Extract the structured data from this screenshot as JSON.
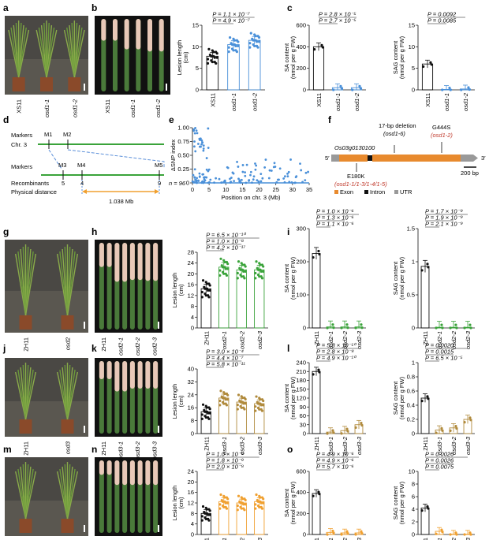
{
  "panel_letters": [
    "a",
    "b",
    "c",
    "d",
    "e",
    "f",
    "g",
    "h",
    "i",
    "j",
    "k",
    "l",
    "m",
    "n",
    "o"
  ],
  "photo_labels": {
    "a": [
      "XS11",
      "osd1-1",
      "osd1-2"
    ],
    "b": [
      "XS11",
      "osd1-1",
      "osd1-2"
    ],
    "g": [
      "ZH11",
      "osd2"
    ],
    "h": [
      "ZH11",
      "osd2-1",
      "osd2-2",
      "osd2-3"
    ],
    "j": [
      "ZH11",
      "osd3"
    ],
    "k": [
      "ZH11",
      "osd3-1",
      "osd3-2",
      "osd3-3"
    ],
    "m": [
      "ZH11",
      "osd4"
    ],
    "n": [
      "ZH11",
      "osd4-1",
      "osd4-2",
      "osd4-3"
    ]
  },
  "colors": {
    "black": "#111111",
    "blue": "#4a90d9",
    "green": "#3aa33a",
    "brown": "#b08a3c",
    "orange": "#f0a030",
    "gray": "#999999",
    "exon": "#e88a2e",
    "red": "#c0392b"
  },
  "mapping_d": {
    "chr_label": "Chr. 3",
    "markers_label": "Markers",
    "top_markers": [
      "M1",
      "M2"
    ],
    "bottom_markers": [
      "M3",
      "M4",
      "M5"
    ],
    "recombinants_label": "Recombinants",
    "recombinants": [
      "5",
      "4",
      "9"
    ],
    "n_label": "n = 96",
    "physical_label": "Physical distance",
    "distance": "1.038 Mb"
  },
  "gene_f": {
    "gene_name": "Os03g0130100",
    "five_prime": "5′",
    "three_prime": "3′",
    "deletion_line1": "17-bp deletion",
    "deletion_line2": "(osd1-6)",
    "g444s_line1": "G444S",
    "g444s_line2": "(osd1-2)",
    "e180k_line1": "E180K",
    "e180k_line2": "(osd1-1/1-3/1-4/1-5)",
    "scale_label": "200 bp",
    "legend": [
      "Exon",
      "Intron",
      "UTR"
    ]
  },
  "chart_data": [
    {
      "panel": "b",
      "type": "scatter",
      "ylabel": "Lesion length (cm)",
      "ylim": [
        0,
        15
      ],
      "yticks": [
        0,
        5,
        10,
        15
      ],
      "categories": [
        "XS11",
        "osd1-1",
        "osd1-2"
      ],
      "values": [
        7.8,
        10.5,
        11.5
      ],
      "color": [
        "black",
        "blue",
        "blue"
      ],
      "pvalues": [
        "P = 1.1 × 10⁻⁷",
        "P = 4.9 × 10⁻⁷"
      ]
    },
    {
      "panel": "c-SA",
      "type": "bar",
      "ylabel": "SA content (nmol per g FW)",
      "ylim": [
        0,
        600
      ],
      "yticks": [
        0,
        200,
        400,
        600
      ],
      "categories": [
        "XS11",
        "osd1-1",
        "osd1-2"
      ],
      "values": [
        400,
        20,
        20
      ],
      "color": [
        "black",
        "blue",
        "blue"
      ],
      "pvalues": [
        "P = 2.8 × 10⁻⁵",
        "P = 2.7 × 10⁻⁵"
      ]
    },
    {
      "panel": "c-SAG",
      "type": "bar",
      "ylabel": "SAG content (nmol per g FW)",
      "ylim": [
        0,
        15
      ],
      "yticks": [
        0,
        5,
        10,
        15
      ],
      "categories": [
        "XS11",
        "osd1-1",
        "osd1-2"
      ],
      "values": [
        6.0,
        0.1,
        0.2
      ],
      "color": [
        "black",
        "blue",
        "blue"
      ],
      "pvalues": [
        "P = 0.0092",
        "P = 0.0085"
      ]
    },
    {
      "panel": "e",
      "type": "scatter",
      "xlabel": "Position on chr. 3 (Mb)",
      "ylabel": "ΔSNP index",
      "xlim": [
        0,
        35
      ],
      "ylim": [
        0,
        1.0
      ],
      "xticks": [
        0,
        5,
        10,
        15,
        20,
        25,
        30,
        35
      ],
      "yticks": [
        0,
        0.25,
        0.5,
        0.75,
        1.0
      ],
      "ytick_labels": [
        "0",
        "0.25",
        "0.50",
        "0.75",
        "1.00"
      ]
    },
    {
      "panel": "h",
      "type": "scatter",
      "ylabel": "Lesion length (cm)",
      "ylim": [
        0,
        28
      ],
      "yticks": [
        0,
        4,
        8,
        12,
        16,
        20,
        24,
        28
      ],
      "categories": [
        "ZH11",
        "osd2-1",
        "osd2-2",
        "osd2-3"
      ],
      "values": [
        14.5,
        22.5,
        21.5,
        21.5
      ],
      "color": [
        "black",
        "green",
        "green",
        "green"
      ],
      "pvalues": [
        "P = 6.5 × 10⁻¹⁰",
        "P = 1.0 × 10⁻⁸",
        "P = 4.2 × 10⁻¹⁷"
      ]
    },
    {
      "panel": "i-SA",
      "type": "bar",
      "ylabel": "SA content (nmol per g FW)",
      "ylim": [
        0,
        300
      ],
      "yticks": [
        0,
        100,
        200,
        300
      ],
      "categories": [
        "ZH11",
        "osd2-1",
        "osd2-2",
        "osd2-3"
      ],
      "values": [
        225,
        3,
        3,
        3
      ],
      "color": [
        "black",
        "green",
        "green",
        "green"
      ],
      "pvalues": [
        "P = 1.0 × 10⁻⁶",
        "P = 1.3 × 10⁻⁶",
        "P = 1.1 × 10⁻⁶"
      ]
    },
    {
      "panel": "i-SAG",
      "type": "bar",
      "ylabel": "SAG content (nmol per g FW)",
      "ylim": [
        0,
        1.5
      ],
      "yticks": [
        0,
        0.5,
        1.0,
        1.5
      ],
      "categories": [
        "ZH11",
        "osd2-1",
        "osd2-2",
        "osd2-3"
      ],
      "values": [
        0.93,
        0.01,
        0.01,
        0.01
      ],
      "color": [
        "black",
        "green",
        "green",
        "green"
      ],
      "pvalues": [
        "P = 1.7 × 10⁻⁹",
        "P = 1.9 × 10⁻⁹",
        "P = 2.1 × 10⁻⁹"
      ]
    },
    {
      "panel": "k",
      "type": "scatter",
      "ylabel": "Lesion length (cm)",
      "ylim": [
        0,
        40
      ],
      "yticks": [
        0,
        8,
        16,
        24,
        32,
        40
      ],
      "categories": [
        "ZH11",
        "osd3-1",
        "osd3-2",
        "osd3-3"
      ],
      "values": [
        13.5,
        22,
        19.5,
        18.5
      ],
      "color": [
        "black",
        "brown",
        "brown",
        "brown"
      ],
      "pvalues": [
        "P = 3.0 × 10⁻⁴",
        "P = 4.4 × 10⁻⁷",
        "P = 5.8 × 10⁻¹¹"
      ]
    },
    {
      "panel": "l-SA",
      "type": "bar",
      "ylabel": "SA content (nmol per g FW)",
      "ylim": [
        0,
        240
      ],
      "yticks": [
        0,
        30,
        60,
        90,
        120,
        150,
        180,
        210,
        240
      ],
      "categories": [
        "ZH11",
        "osd3-1",
        "osd3-2",
        "osd3-3"
      ],
      "values": [
        210,
        5,
        10,
        30
      ],
      "color": [
        "black",
        "brown",
        "brown",
        "brown"
      ],
      "pvalues": [
        "P = 5.8 × 10⁻¹⁰",
        "P = 2.8 × 10⁻⁸",
        "P = 4.9 × 10⁻¹⁰"
      ]
    },
    {
      "panel": "l-SAG",
      "type": "bar",
      "ylabel": "SAG content (nmol per g FW)",
      "ylim": [
        0,
        1.0
      ],
      "yticks": [
        0,
        0.2,
        0.4,
        0.6,
        0.8,
        1.0
      ],
      "categories": [
        "ZH11",
        "osd3-1",
        "osd3-2",
        "osd3-3"
      ],
      "values": [
        0.5,
        0.05,
        0.08,
        0.2
      ],
      "color": [
        "black",
        "brown",
        "brown",
        "brown"
      ],
      "pvalues": [
        "P = 0.0020",
        "P = 0.0015",
        "P = 6.5 × 10⁻⁵"
      ]
    },
    {
      "panel": "n",
      "type": "scatter",
      "ylabel": "Lesion length (cm)",
      "ylim": [
        0,
        24
      ],
      "yticks": [
        0,
        4,
        8,
        12,
        16,
        20,
        24
      ],
      "categories": [
        "ZH11",
        "osd4-1",
        "osd4-2",
        "osd4-3"
      ],
      "values": [
        8.0,
        12.5,
        12.0,
        12.5
      ],
      "color": [
        "black",
        "orange",
        "orange",
        "orange"
      ],
      "pvalues": [
        "P = 1.0 × 10⁻⁹",
        "P = 1.8 × 10⁻⁹",
        "P = 2.0 × 10⁻⁸"
      ]
    },
    {
      "panel": "o-SA",
      "type": "bar",
      "ylabel": "SA content (nmol per g FW)",
      "ylim": [
        0,
        600
      ],
      "yticks": [
        0,
        200,
        400,
        600
      ],
      "categories": [
        "ZH11",
        "osd4-1",
        "osd4-2",
        "osd4-3"
      ],
      "values": [
        390,
        20,
        15,
        15
      ],
      "color": [
        "black",
        "orange",
        "orange",
        "orange"
      ],
      "pvalues": [
        "P = 4.9 × 10⁻⁶",
        "P = 4.9 × 10⁻⁶",
        "P = 5.7 × 10⁻⁶"
      ]
    },
    {
      "panel": "o-SAG",
      "type": "bar",
      "ylabel": "SAG content (nmol per g FW)",
      "ylim": [
        0,
        10
      ],
      "yticks": [
        0,
        2,
        4,
        6,
        8,
        10
      ],
      "categories": [
        "ZH11",
        "osd4-1",
        "osd4-2",
        "osd4-3"
      ],
      "values": [
        4.2,
        0.5,
        0.05,
        0.05
      ],
      "color": [
        "black",
        "orange",
        "orange",
        "orange"
      ],
      "pvalues": [
        "P = 0.0026",
        "P = 0.0026",
        "P = 0.0075"
      ]
    }
  ]
}
